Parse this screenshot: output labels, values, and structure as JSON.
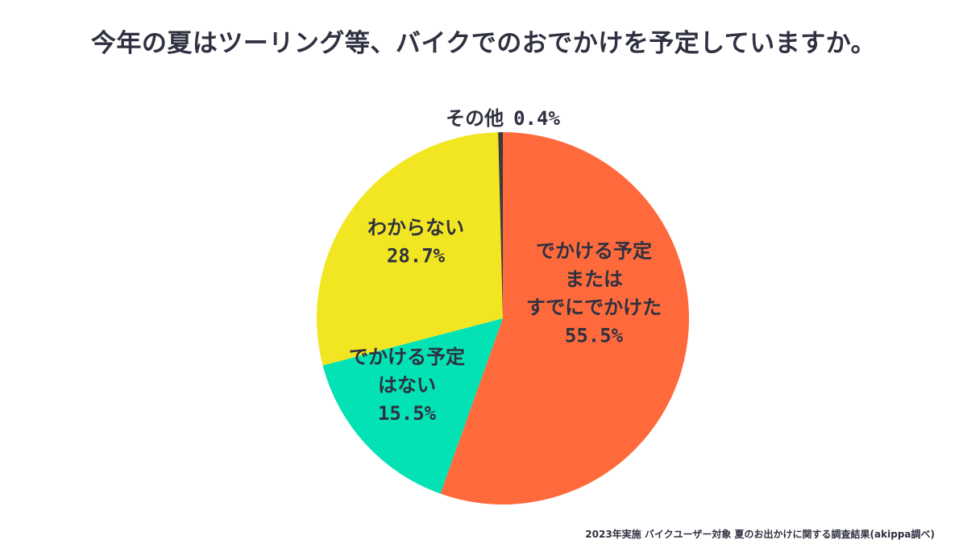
{
  "chart_data": {
    "type": "pie",
    "title": "今年の夏はツーリング等、バイクでのおでかけを予定していますか。",
    "slices": [
      {
        "label_lines": [
          "でかける予定",
          "または",
          "すでにでかけた"
        ],
        "value": 55.5,
        "value_label": "55.5%",
        "color": "#fe6a3c"
      },
      {
        "label_lines": [
          "でかける予定",
          "はない"
        ],
        "value": 15.5,
        "value_label": "15.5%",
        "color": "#03e2b4"
      },
      {
        "label_lines": [
          "わからない"
        ],
        "value": 28.7,
        "value_label": "28.7%",
        "color": "#f1e621"
      },
      {
        "label_lines": [
          "その他"
        ],
        "value": 0.4,
        "value_label": "0.4%",
        "color": "#3b3b3b"
      }
    ],
    "legend": "none",
    "source": "2023年実施 バイクユーザー対象 夏のお出かけに関する調査結果(akippa調べ)"
  }
}
